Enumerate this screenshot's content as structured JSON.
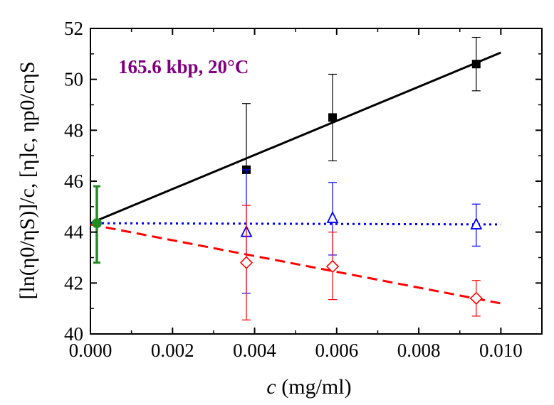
{
  "chart_data": {
    "type": "scatter",
    "annotation": "165.6 kbp, 20°C",
    "annotation_color": "#800080",
    "xlabel_italic": "c",
    "xlabel_rest": " (mg/ml)",
    "ylabel": "[ln(η0/ηS)]/c,  [η]c,  ηp0/cηS",
    "xlim": [
      0,
      0.011
    ],
    "ylim": [
      40,
      52
    ],
    "x_ticks": [
      "0.000",
      "0.002",
      "0.004",
      "0.006",
      "0.008",
      "0.010"
    ],
    "y_ticks": [
      "40",
      "42",
      "44",
      "46",
      "48",
      "50",
      "52"
    ],
    "grid": false,
    "series": [
      {
        "marker": "filled-square",
        "color": "#000000",
        "x": [
          0.0038,
          0.0059,
          0.0094
        ],
        "y": [
          46.45,
          48.5,
          50.6
        ],
        "err_low": [
          46.45,
          46.8,
          49.55
        ],
        "err_high": [
          49.05,
          50.2,
          51.65
        ],
        "fit": {
          "style": "solid",
          "x": [
            0.0,
            0.01
          ],
          "y": [
            44.35,
            51.05
          ]
        }
      },
      {
        "marker": "open-triangle",
        "color": "#0000ff",
        "x": [
          0.0038,
          0.0059,
          0.0094
        ],
        "y": [
          44.0,
          44.55,
          44.3
        ],
        "err_low": [
          41.6,
          43.1,
          43.45
        ],
        "err_high": [
          46.45,
          45.95,
          45.1
        ],
        "fit": {
          "style": "dotted",
          "x": [
            0.0,
            0.01
          ],
          "y": [
            44.35,
            44.3
          ]
        }
      },
      {
        "marker": "open-diamond",
        "color": "#ff0000",
        "x": [
          0.0038,
          0.0059,
          0.0094
        ],
        "y": [
          42.8,
          42.65,
          41.4
        ],
        "err_low": [
          40.55,
          41.35,
          40.7
        ],
        "err_high": [
          45.05,
          44.0,
          42.1
        ],
        "fit": {
          "style": "dashed",
          "x": [
            0.0,
            0.01
          ],
          "y": [
            44.3,
            41.2
          ]
        }
      }
    ],
    "intercept_point": {
      "color": "#228b22",
      "x": 0.0,
      "y": 44.35,
      "err_low": 42.8,
      "err_high": 45.8
    }
  }
}
